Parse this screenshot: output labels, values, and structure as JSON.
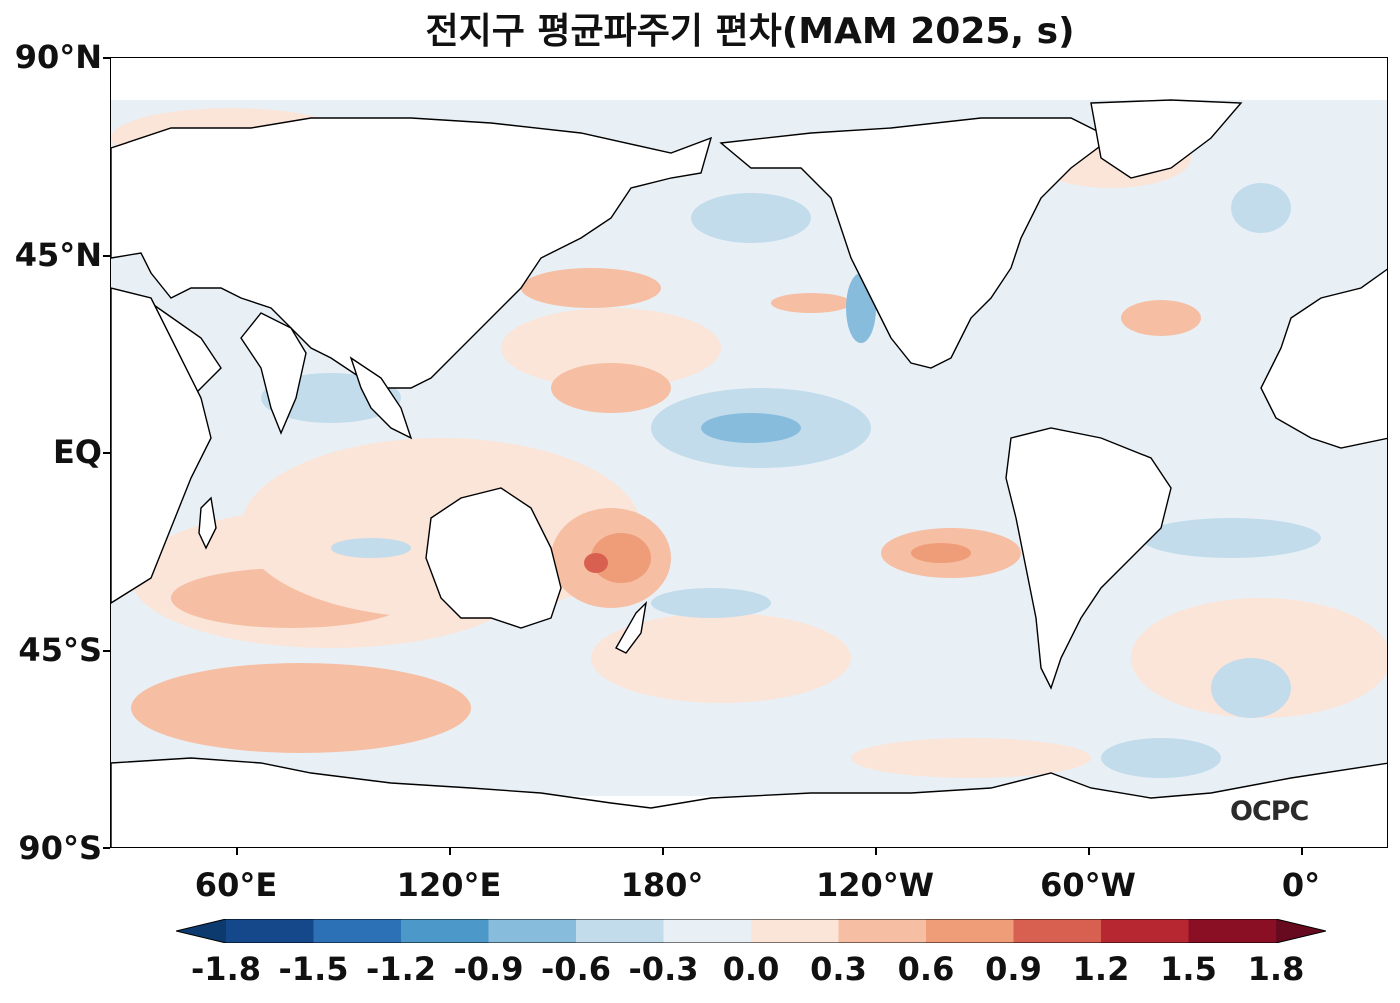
{
  "title": "전지구 평균파주기 편차(MAM 2025, s)",
  "y_axis": {
    "labels": [
      "90°N",
      "45°N",
      "EQ",
      "45°S",
      "90°S"
    ],
    "values": [
      90,
      45,
      0,
      -45,
      -90
    ]
  },
  "x_axis": {
    "labels": [
      "60°E",
      "120°E",
      "180°",
      "120°W",
      "60°W",
      "0°"
    ],
    "values": [
      60,
      120,
      180,
      240,
      300,
      360
    ]
  },
  "logo": "OCPC",
  "colorbar": {
    "labels": [
      "-1.8",
      "-1.5",
      "-1.2",
      "-0.9",
      "-0.6",
      "-0.3",
      "0.0",
      "0.3",
      "0.6",
      "0.9",
      "1.2",
      "1.5",
      "1.8"
    ],
    "colors": [
      "#0d3a6e",
      "#14488a",
      "#2c70b5",
      "#4b98c9",
      "#88bcdc",
      "#c2dcec",
      "#e8f0f6",
      "#fbe4d8",
      "#f6bea2",
      "#ef9d78",
      "#d86050",
      "#b72732",
      "#8a0f25",
      "#670a1f"
    ]
  },
  "colors": {
    "ocean_background": "#e8f0f6",
    "land": "#ffffff",
    "coastline": "#000000"
  }
}
